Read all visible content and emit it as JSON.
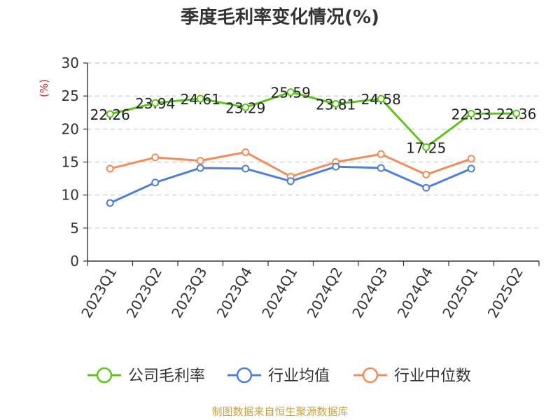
{
  "chart_data": {
    "type": "line",
    "title": "季度毛利率变化情况(%)",
    "ylabel": "(%)",
    "xlabel": "",
    "ylim": [
      0,
      30
    ],
    "yticks": [
      0,
      5,
      10,
      15,
      20,
      25,
      30
    ],
    "categories": [
      "2023Q1",
      "2023Q2",
      "2023Q3",
      "2023Q4",
      "2024Q1",
      "2024Q2",
      "2024Q3",
      "2024Q4",
      "2025Q1",
      "2025Q2"
    ],
    "grid": true,
    "legend_position": "bottom",
    "series": [
      {
        "name": "公司毛利率",
        "color": "#5cc41a",
        "values": [
          22.26,
          23.94,
          24.61,
          23.29,
          25.59,
          23.81,
          24.58,
          17.25,
          22.33,
          22.36
        ],
        "labels": [
          "22.26",
          "23.94",
          "24.61",
          "23.29",
          "25.59",
          "23.81",
          "24.58",
          "17.25",
          "22.33",
          "22.36"
        ]
      },
      {
        "name": "行业均值",
        "color": "#4f7fd6",
        "values": [
          8.8,
          11.9,
          14.1,
          14.0,
          12.1,
          14.3,
          14.1,
          11.1,
          14.0,
          null
        ]
      },
      {
        "name": "行业中位数",
        "color": "#f28c5a",
        "values": [
          14.0,
          15.7,
          15.2,
          16.5,
          12.8,
          15.0,
          16.2,
          13.1,
          15.5,
          null
        ]
      }
    ]
  },
  "source": "制图数据来自恒生聚源数据库"
}
